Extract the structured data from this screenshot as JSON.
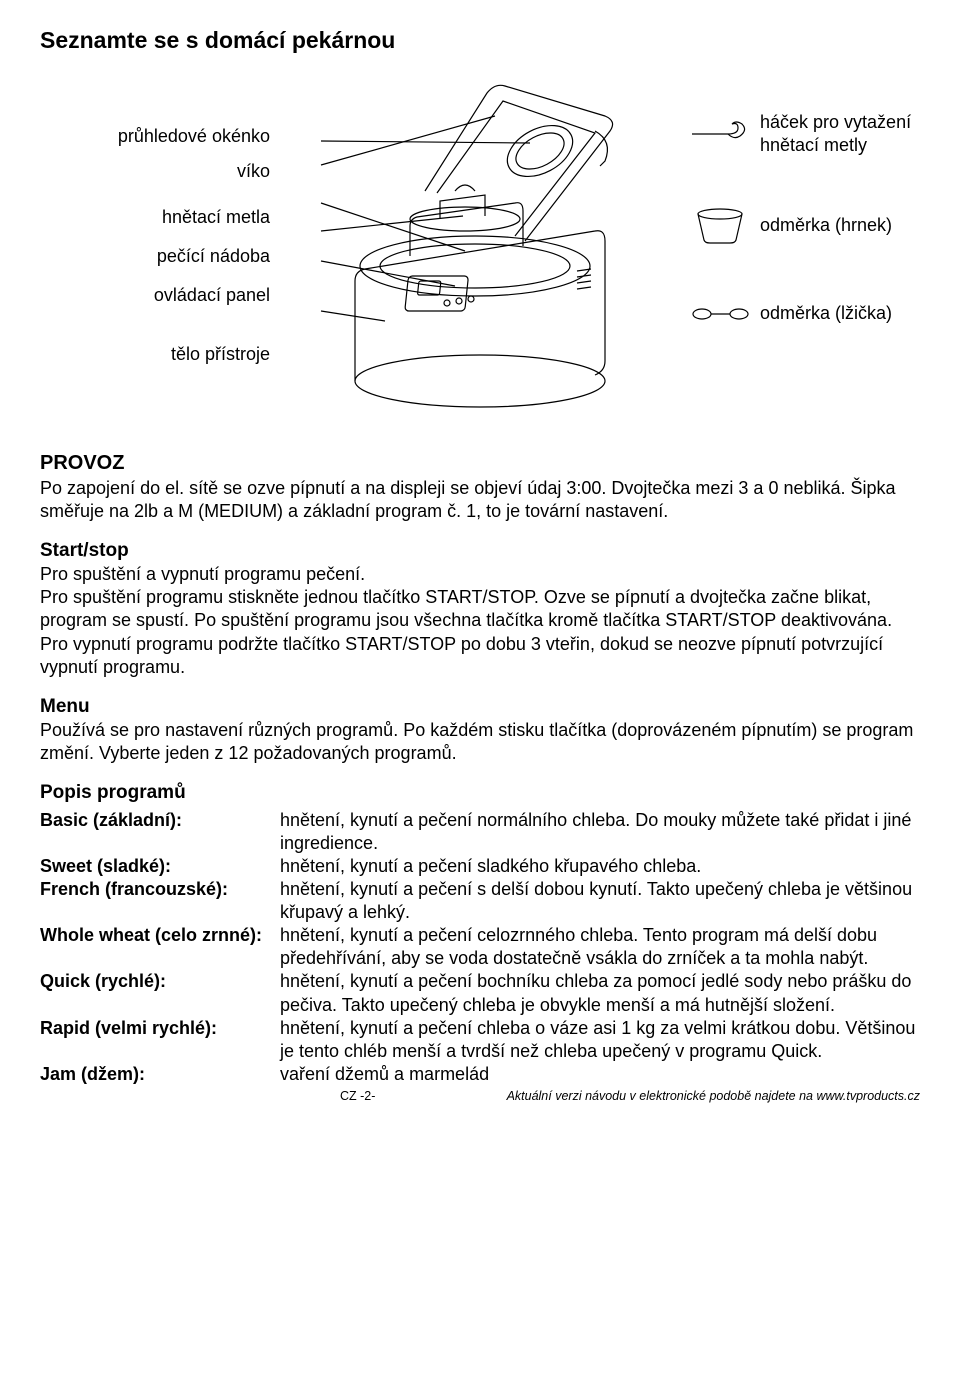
{
  "title": "Seznamte se s domácí pekárnou",
  "labels_left": {
    "window": "průhledové okénko",
    "lid": "víko",
    "kneader": "hnětací metla",
    "pan": "pečící nádoba",
    "panel": "ovládací panel",
    "body": "tělo přístroje"
  },
  "labels_right": {
    "hook1": "háček pro vytažení",
    "hook2": "hnětací metly",
    "cup": "odměrka (hrnek)",
    "spoon": "odměrka (lžička)"
  },
  "provoz": {
    "heading": "PROVOZ",
    "text": "Po zapojení do el. sítě se ozve pípnutí a na displeji se objeví údaj 3:00. Dvojtečka mezi 3 a 0 nebliká. Šipka směřuje na 2lb a M (MEDIUM) a základní program č. 1,  to je tovární nastavení."
  },
  "startstop": {
    "heading": "Start/stop",
    "text1": "Pro spuštění a vypnutí programu pečení.",
    "text2": "Pro spuštění programu stiskněte jednou tlačítko START/STOP. Ozve se pípnutí a dvojtečka začne blikat, program se spustí. Po spuštění programu jsou všechna tlačítka kromě tlačítka START/STOP deaktivována.",
    "text3": "Pro vypnutí programu podržte tlačítko START/STOP po dobu 3 vteřin, dokud se neozve pípnutí potvrzující vypnutí programu."
  },
  "menu": {
    "heading": "Menu",
    "text": "Používá se pro nastavení různých programů. Po každém stisku tlačítka (doprovázeném pípnutím) se program změní. Vyberte jeden z 12 požadovaných programů."
  },
  "programs": {
    "heading": "Popis programů",
    "items": [
      {
        "label": "Basic (základní):",
        "desc": "hnětení, kynutí a pečení normálního chleba. Do mouky můžete také přidat i jiné ingredience."
      },
      {
        "label": "Sweet (sladké):",
        "desc": "hnětení, kynutí a pečení sladkého křupavého chleba."
      },
      {
        "label": "French (francouzské):",
        "desc": "hnětení, kynutí a pečení s delší dobou kynutí. Takto upečený chleba je většinou křupavý a lehký."
      },
      {
        "label": "Whole wheat (celo zrnné):",
        "desc": "hnětení, kynutí a pečení celozrnného chleba. Tento program má delší dobu předehřívání, aby se voda dostatečně vsákla do zrníček a ta mohla nabýt."
      },
      {
        "label": "Quick (rychlé):",
        "desc": "hnětení, kynutí a pečení bochníku chleba za pomocí jedlé sody nebo prášku do pečiva. Takto upečený chleba je obvykle menší a má hutnější složení."
      },
      {
        "label": "Rapid (velmi rychlé):",
        "desc": "hnětení, kynutí a pečení chleba o váze asi 1 kg za velmi krátkou dobu. Většinou je tento chléb menší a tvrdší než chleba upečený v programu Quick."
      },
      {
        "label": "Jam (džem):",
        "desc": "vaření džemů a marmelád"
      }
    ]
  },
  "footer": {
    "page": "CZ -2-",
    "note": "Aktuální verzi návodu v elektronické podobě najdete na www.tvproducts.cz"
  }
}
